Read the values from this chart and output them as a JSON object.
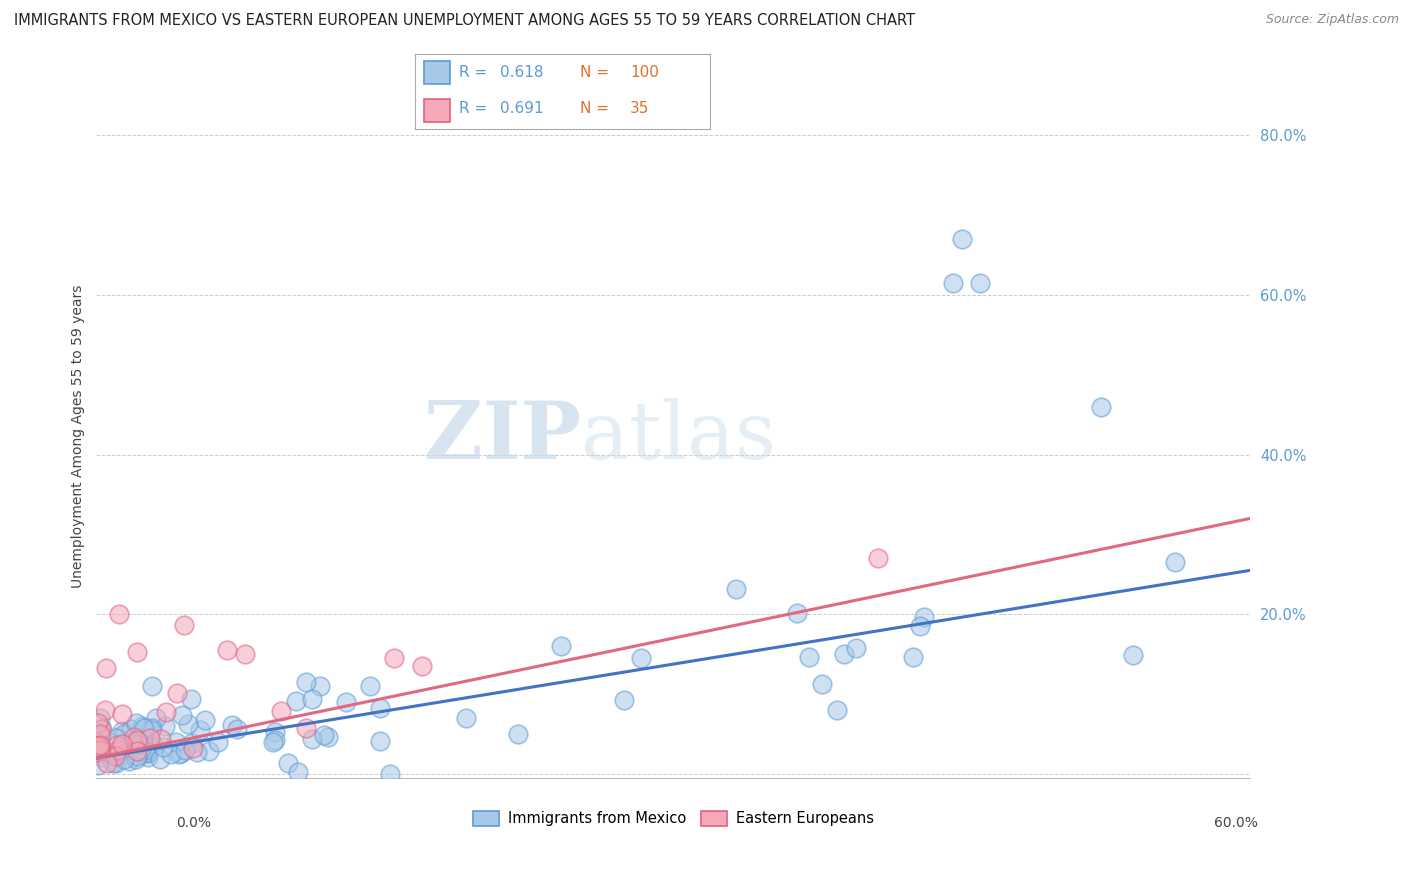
{
  "title": "IMMIGRANTS FROM MEXICO VS EASTERN EUROPEAN UNEMPLOYMENT AMONG AGES 55 TO 59 YEARS CORRELATION CHART",
  "source": "Source: ZipAtlas.com",
  "ylabel": "Unemployment Among Ages 55 to 59 years",
  "watermark_zip": "ZIP",
  "watermark_atlas": "atlas",
  "bg_color": "#ffffff",
  "blue_color": "#a8c8e8",
  "blue_edge_color": "#5b9bd5",
  "pink_color": "#f4a8b8",
  "pink_edge_color": "#e06080",
  "blue_line_color": "#4472c4",
  "pink_line_color": "#e06880",
  "blue_R": "0.618",
  "blue_N": "100",
  "pink_R": "0.691",
  "pink_N": "35",
  "R_color": "#5b9bd5",
  "N_color": "#e07030",
  "xlim": [
    0.0,
    0.62
  ],
  "ylim": [
    -0.005,
    0.85
  ],
  "ytick_vals": [
    0.0,
    0.2,
    0.4,
    0.6,
    0.8
  ],
  "ytick_labels": [
    "",
    "20.0%",
    "40.0%",
    "60.0%",
    "80.0%"
  ],
  "blue_line_x0": 0.0,
  "blue_line_y0": 0.02,
  "blue_line_x1": 0.62,
  "blue_line_y1": 0.255,
  "pink_line_x0": 0.0,
  "pink_line_y0": 0.02,
  "pink_line_x1": 0.62,
  "pink_line_y1": 0.32
}
